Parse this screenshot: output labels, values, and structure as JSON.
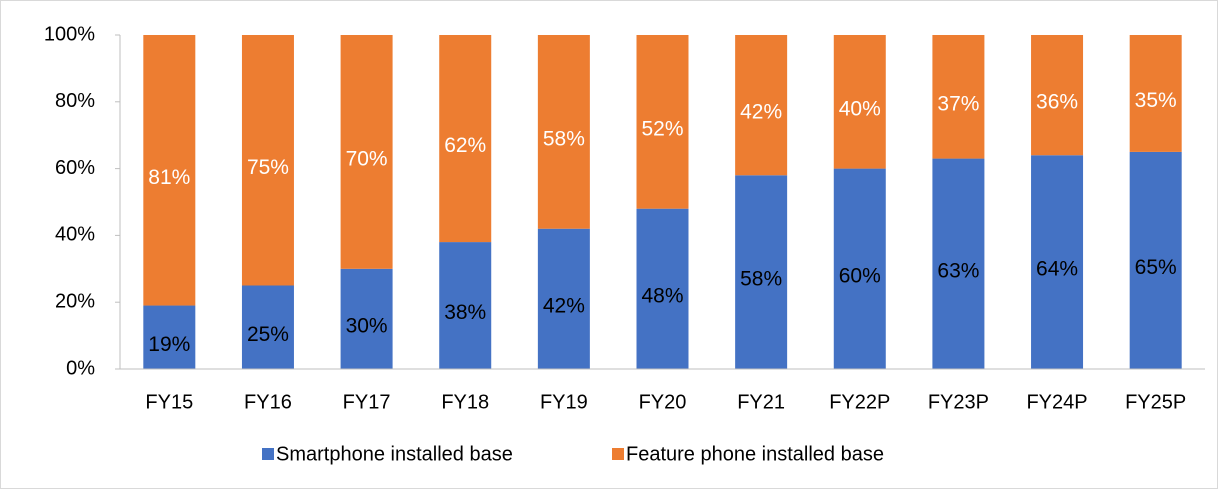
{
  "chart_data": {
    "type": "stacked_bar",
    "categories": [
      "FY15",
      "FY16",
      "FY17",
      "FY18",
      "FY19",
      "FY20",
      "FY21",
      "FY22P",
      "FY23P",
      "FY24P",
      "FY25P"
    ],
    "series": [
      {
        "name": "Smartphone installed base",
        "color": "#4472c4",
        "label_color": "#000000",
        "values": [
          19,
          25,
          30,
          38,
          42,
          48,
          58,
          60,
          63,
          64,
          65
        ],
        "value_labels": [
          "19%",
          "25%",
          "30%",
          "38%",
          "42%",
          "48%",
          "58%",
          "60%",
          "63%",
          "64%",
          "65%"
        ]
      },
      {
        "name": "Feature phone installed base",
        "color": "#ed7d31",
        "label_color": "#ffffff",
        "values": [
          81,
          75,
          70,
          62,
          58,
          52,
          42,
          40,
          37,
          36,
          35
        ],
        "value_labels": [
          "81%",
          "75%",
          "70%",
          "62%",
          "58%",
          "52%",
          "42%",
          "40%",
          "37%",
          "36%",
          "35%"
        ]
      }
    ],
    "ylim": [
      0,
      100
    ],
    "yticks": [
      {
        "value": 0,
        "label": "0%"
      },
      {
        "value": 20,
        "label": "20%"
      },
      {
        "value": 40,
        "label": "40%"
      },
      {
        "value": 60,
        "label": "60%"
      },
      {
        "value": 80,
        "label": "80%"
      },
      {
        "value": 100,
        "label": "100%"
      }
    ],
    "legend": "bottom"
  }
}
